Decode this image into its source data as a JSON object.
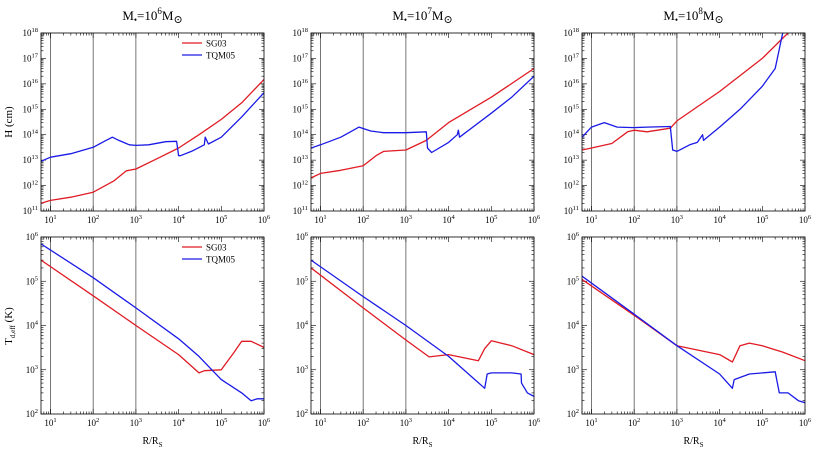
{
  "colors": {
    "SG03": "#e01b24",
    "TQM05": "#1a1ae6",
    "vline": "#555555"
  },
  "column_titles": [
    {
      "pre": "M",
      "sub": "•",
      "mid": "=10",
      "sup": "6",
      "post": "M",
      "sun": "⊙"
    },
    {
      "pre": "M",
      "sub": "•",
      "mid": "=10",
      "sup": "7",
      "post": "M",
      "sun": "⊙"
    },
    {
      "pre": "M",
      "sub": "•",
      "mid": "=10",
      "sup": "8",
      "post": "M",
      "sun": "⊙"
    }
  ],
  "row_ylabels": [
    {
      "main": "H (cm)",
      "sub": ""
    },
    {
      "main": "T",
      "sub": "d,eff",
      "rest": " (K)"
    }
  ],
  "xlabel": {
    "main": "R/R",
    "sub": "S"
  },
  "legend": [
    "SG03",
    "TQM05"
  ],
  "chart_data": [
    {
      "type": "line",
      "panel": "top-left",
      "log_x": true,
      "log_y": true,
      "xlim": [
        6,
        1000000
      ],
      "ylim": [
        100000000000,
        1000000000000000000
      ],
      "x_ticks": [
        "10^1",
        "10^2",
        "10^3",
        "10^4",
        "10^5",
        "10^6"
      ],
      "y_ticks": [
        "10^11",
        "10^12",
        "10^13",
        "10^14",
        "10^15",
        "10^16",
        "10^17",
        "10^18"
      ],
      "vlines": [
        10,
        100,
        1000
      ],
      "legend_position": "top-right",
      "series": [
        {
          "name": "SG03",
          "points": [
            [
              6,
              200000000000.0
            ],
            [
              10,
              260000000000.0
            ],
            [
              30,
              350000000000.0
            ],
            [
              100,
              550000000000.0
            ],
            [
              300,
              1500000000000.0
            ],
            [
              600,
              3800000000000.0
            ],
            [
              1000,
              4500000000000.0
            ],
            [
              3000,
              11000000000000.0
            ],
            [
              10000,
              30000000000000.0
            ],
            [
              30000,
              100000000000000.0
            ],
            [
              100000,
              400000000000000.0
            ],
            [
              300000,
              1800000000000000.0
            ],
            [
              1000000,
              1.5e+16
            ]
          ]
        },
        {
          "name": "TQM05",
          "points": [
            [
              6,
              9000000000000.0
            ],
            [
              10,
              13000000000000.0
            ],
            [
              30,
              18000000000000.0
            ],
            [
              100,
              32000000000000.0
            ],
            [
              200,
              60000000000000.0
            ],
            [
              280,
              80000000000000.0
            ],
            [
              400,
              60000000000000.0
            ],
            [
              700,
              40000000000000.0
            ],
            [
              1000,
              38000000000000.0
            ],
            [
              2000,
              40000000000000.0
            ],
            [
              5000,
              53000000000000.0
            ],
            [
              9000,
              55000000000000.0
            ],
            [
              10000,
              15000000000000.0
            ],
            [
              11000,
              15000000000000.0
            ],
            [
              20000,
              22000000000000.0
            ],
            [
              40000,
              40000000000000.0
            ],
            [
              42000,
              80000000000000.0
            ],
            [
              50000,
              43000000000000.0
            ],
            [
              100000,
              80000000000000.0
            ],
            [
              300000,
              500000000000000.0
            ],
            [
              1000000,
              4500000000000000.0
            ]
          ]
        }
      ]
    },
    {
      "type": "line",
      "panel": "top-middle",
      "log_x": true,
      "log_y": true,
      "xlim": [
        6,
        1000000
      ],
      "ylim": [
        100000000000,
        1000000000000000000
      ],
      "x_ticks": [
        "10^1",
        "10^2",
        "10^3",
        "10^4",
        "10^5",
        "10^6"
      ],
      "y_ticks": [
        "10^11",
        "10^12",
        "10^13",
        "10^14",
        "10^15",
        "10^16",
        "10^17",
        "10^18"
      ],
      "vlines": [
        10,
        100,
        1000
      ],
      "series": [
        {
          "name": "SG03",
          "points": [
            [
              6,
              2000000000000.0
            ],
            [
              10,
              3000000000000.0
            ],
            [
              30,
              4000000000000.0
            ],
            [
              100,
              6000000000000.0
            ],
            [
              200,
              15000000000000.0
            ],
            [
              300,
              22000000000000.0
            ],
            [
              1000,
              25000000000000.0
            ],
            [
              3000,
              60000000000000.0
            ],
            [
              10000,
              300000000000000.0
            ],
            [
              100000,
              3000000000000000.0
            ],
            [
              1000000,
              4e+16
            ]
          ]
        },
        {
          "name": "TQM05",
          "points": [
            [
              6,
              30000000000000.0
            ],
            [
              10,
              40000000000000.0
            ],
            [
              30,
              80000000000000.0
            ],
            [
              80,
              200000000000000.0
            ],
            [
              150,
              140000000000000.0
            ],
            [
              300,
              120000000000000.0
            ],
            [
              1000,
              120000000000000.0
            ],
            [
              3000,
              130000000000000.0
            ],
            [
              3200,
              30000000000000.0
            ],
            [
              4000,
              20000000000000.0
            ],
            [
              10000,
              50000000000000.0
            ],
            [
              16000,
              100000000000000.0
            ],
            [
              17000,
              150000000000000.0
            ],
            [
              18000,
              80000000000000.0
            ],
            [
              100000,
              700000000000000.0
            ],
            [
              300000,
              3000000000000000.0
            ],
            [
              1000000,
              2e+16
            ]
          ]
        }
      ]
    },
    {
      "type": "line",
      "panel": "top-right",
      "log_x": true,
      "log_y": true,
      "xlim": [
        6,
        1000000
      ],
      "ylim": [
        100000000000,
        1000000000000000000
      ],
      "x_ticks": [
        "10^1",
        "10^2",
        "10^3",
        "10^4",
        "10^5",
        "10^6"
      ],
      "y_ticks": [
        "10^11",
        "10^12",
        "10^13",
        "10^14",
        "10^15",
        "10^16",
        "10^17",
        "10^18"
      ],
      "vlines": [
        10,
        100,
        1000
      ],
      "series": [
        {
          "name": "SG03",
          "points": [
            [
              6,
              25000000000000.0
            ],
            [
              10,
              30000000000000.0
            ],
            [
              30,
              45000000000000.0
            ],
            [
              70,
              130000000000000.0
            ],
            [
              100,
              150000000000000.0
            ],
            [
              200,
              130000000000000.0
            ],
            [
              700,
              180000000000000.0
            ],
            [
              1000,
              350000000000000.0
            ],
            [
              10000,
              5000000000000000.0
            ],
            [
              100000,
              1e+17
            ],
            [
              400000,
              1e+18
            ]
          ]
        },
        {
          "name": "TQM05",
          "points": [
            [
              6,
              80000000000000.0
            ],
            [
              10,
              200000000000000.0
            ],
            [
              20,
              300000000000000.0
            ],
            [
              40,
              200000000000000.0
            ],
            [
              100,
              190000000000000.0
            ],
            [
              200,
              200000000000000.0
            ],
            [
              700,
              210000000000000.0
            ],
            [
              800,
              25000000000000.0
            ],
            [
              1000,
              22000000000000.0
            ],
            [
              2000,
              40000000000000.0
            ],
            [
              3000,
              50000000000000.0
            ],
            [
              4000,
              100000000000000.0
            ],
            [
              4200,
              60000000000000.0
            ],
            [
              10000,
              200000000000000.0
            ],
            [
              30000,
              1000000000000000.0
            ],
            [
              100000,
              8000000000000000.0
            ],
            [
              200000,
              4e+16
            ],
            [
              300000,
              1e+18
            ]
          ]
        }
      ]
    },
    {
      "type": "line",
      "panel": "bottom-left",
      "log_x": true,
      "log_y": true,
      "xlim": [
        6,
        1000000
      ],
      "ylim": [
        100,
        1000000
      ],
      "x_ticks": [
        "10^1",
        "10^2",
        "10^3",
        "10^4",
        "10^5",
        "10^6"
      ],
      "y_ticks": [
        "10^2",
        "10^3",
        "10^4",
        "10^5",
        "10^6"
      ],
      "vlines": [
        10,
        100,
        1000
      ],
      "legend_position": "top-right",
      "series": [
        {
          "name": "SG03",
          "points": [
            [
              6,
              300000
            ],
            [
              100,
              47000
            ],
            [
              1000,
              10000
            ],
            [
              10000,
              2200
            ],
            [
              30000,
              850
            ],
            [
              40000,
              950
            ],
            [
              100000,
              1000
            ],
            [
              200000,
              2500
            ],
            [
              300000,
              4400
            ],
            [
              500000,
              4400
            ],
            [
              1000000,
              3200
            ]
          ]
        },
        {
          "name": "TQM05",
          "points": [
            [
              6,
              700000
            ],
            [
              100,
              120000
            ],
            [
              1000,
              25000
            ],
            [
              10000,
              5000
            ],
            [
              30000,
              2000
            ],
            [
              60000,
              1000
            ],
            [
              100000,
              600
            ],
            [
              300000,
              300
            ],
            [
              500000,
              200
            ],
            [
              700000,
              220
            ],
            [
              1000000,
              220
            ]
          ]
        }
      ]
    },
    {
      "type": "line",
      "panel": "bottom-middle",
      "log_x": true,
      "log_y": true,
      "xlim": [
        6,
        1000000
      ],
      "ylim": [
        100,
        1000000
      ],
      "x_ticks": [
        "10^1",
        "10^2",
        "10^3",
        "10^4",
        "10^5",
        "10^6"
      ],
      "y_ticks": [
        "10^2",
        "10^3",
        "10^4",
        "10^5",
        "10^6"
      ],
      "vlines": [
        10,
        100,
        1000
      ],
      "series": [
        {
          "name": "SG03",
          "points": [
            [
              6,
              200000
            ],
            [
              100,
              25000
            ],
            [
              1000,
              4700
            ],
            [
              3500,
              1950
            ],
            [
              10000,
              2200
            ],
            [
              50000,
              1600
            ],
            [
              70000,
              3000
            ],
            [
              100000,
              4500
            ],
            [
              300000,
              3500
            ],
            [
              1000000,
              2200
            ]
          ]
        },
        {
          "name": "TQM05",
          "points": [
            [
              6,
              300000
            ],
            [
              100,
              45000
            ],
            [
              1000,
              10000
            ],
            [
              10000,
              2000
            ],
            [
              70000,
              380
            ],
            [
              80000,
              800
            ],
            [
              100000,
              850
            ],
            [
              300000,
              850
            ],
            [
              500000,
              800
            ],
            [
              510000,
              500
            ],
            [
              700000,
              300
            ],
            [
              1000000,
              250
            ]
          ]
        }
      ]
    },
    {
      "type": "line",
      "panel": "bottom-right",
      "log_x": true,
      "log_y": true,
      "xlim": [
        6,
        1000000
      ],
      "ylim": [
        100,
        1000000
      ],
      "x_ticks": [
        "10^1",
        "10^2",
        "10^3",
        "10^4",
        "10^5",
        "10^6"
      ],
      "y_ticks": [
        "10^2",
        "10^3",
        "10^4",
        "10^5",
        "10^6"
      ],
      "vlines": [
        10,
        100,
        1000
      ],
      "series": [
        {
          "name": "SG03",
          "points": [
            [
              6,
              110000
            ],
            [
              100,
              17000
            ],
            [
              1000,
              3500
            ],
            [
              10000,
              2200
            ],
            [
              20000,
              1500
            ],
            [
              30000,
              3500
            ],
            [
              50000,
              4000
            ],
            [
              100000,
              3500
            ],
            [
              300000,
              2500
            ],
            [
              1000000,
              1600
            ]
          ]
        },
        {
          "name": "TQM05",
          "points": [
            [
              6,
              130000
            ],
            [
              100,
              18000
            ],
            [
              1000,
              3500
            ],
            [
              10000,
              800
            ],
            [
              20000,
              380
            ],
            [
              22000,
              600
            ],
            [
              50000,
              800
            ],
            [
              200000,
              900
            ],
            [
              250000,
              300
            ],
            [
              400000,
              300
            ],
            [
              700000,
              200
            ],
            [
              1000000,
              180
            ]
          ]
        }
      ]
    }
  ]
}
